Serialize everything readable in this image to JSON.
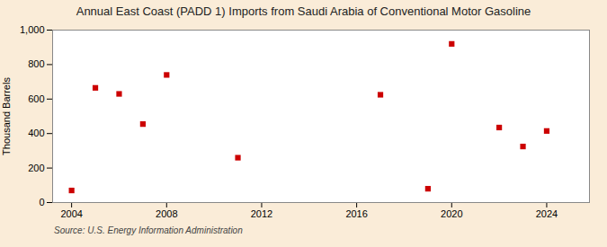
{
  "chart_data": {
    "type": "scatter",
    "title": "Annual East Coast (PADD 1) Imports from Saudi Arabia of Conventional Motor Gasoline",
    "ylabel": "Thousand Barrels",
    "source": "Source: U.S. Energy Information Administration",
    "x": [
      2004,
      2005,
      2006,
      2007,
      2008,
      2011,
      2017,
      2019,
      2020,
      2022,
      2023,
      2024
    ],
    "values": [
      70,
      665,
      630,
      455,
      740,
      260,
      625,
      80,
      920,
      435,
      325,
      415
    ],
    "color": "#cc0000",
    "marker": "square",
    "xlim": [
      2003.2,
      2025.8
    ],
    "xticks": [
      2004,
      2008,
      2012,
      2016,
      2020,
      2024
    ],
    "ylim": [
      0,
      1000
    ],
    "yticks": [
      0,
      200,
      400,
      600,
      800,
      {
        "value": 1000,
        "label": "1,000"
      }
    ],
    "grid": true
  }
}
